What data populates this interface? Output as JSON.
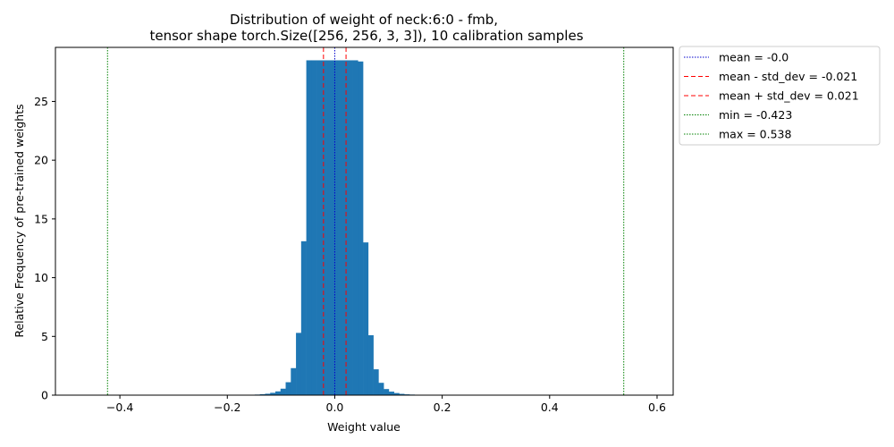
{
  "chart_data": {
    "type": "bar",
    "title": "Distribution of weight of neck:6:0 - fmb,",
    "subtitle": "tensor shape torch.Size([256, 256, 3, 3]), 10 calibration samples",
    "xlabel": "Weight value",
    "ylabel": "Relative Frequency of pre-trained weights",
    "xlim": [
      -0.52,
      0.63
    ],
    "ylim": [
      0,
      29.6
    ],
    "xticks": [
      -0.4,
      -0.2,
      0.0,
      0.2,
      0.4,
      0.6
    ],
    "xtick_labels": [
      "−0.4",
      "−0.2",
      "0.0",
      "0.2",
      "0.4",
      "0.6"
    ],
    "yticks": [
      0,
      5,
      10,
      15,
      20,
      25
    ],
    "ytick_labels": [
      "0",
      "5",
      "10",
      "15",
      "20",
      "25"
    ],
    "bar_color": "#1f77b4",
    "bin_width": 0.0096,
    "bins": [
      {
        "x": -0.1874,
        "y": 0.01
      },
      {
        "x": -0.1778,
        "y": 0.02
      },
      {
        "x": -0.1682,
        "y": 0.02
      },
      {
        "x": -0.1586,
        "y": 0.03
      },
      {
        "x": -0.149,
        "y": 0.05
      },
      {
        "x": -0.1394,
        "y": 0.08
      },
      {
        "x": -0.1298,
        "y": 0.12
      },
      {
        "x": -0.1202,
        "y": 0.2
      },
      {
        "x": -0.1106,
        "y": 0.32
      },
      {
        "x": -0.101,
        "y": 0.55
      },
      {
        "x": -0.0914,
        "y": 1.1
      },
      {
        "x": -0.0818,
        "y": 2.3
      },
      {
        "x": -0.0722,
        "y": 5.3
      },
      {
        "x": -0.0626,
        "y": 13.1
      },
      {
        "x": -0.053,
        "y": 28.5
      },
      {
        "x": -0.0434,
        "y": 28.5
      },
      {
        "x": -0.0338,
        "y": 28.5
      },
      {
        "x": -0.0242,
        "y": 28.5
      },
      {
        "x": -0.0146,
        "y": 28.5
      },
      {
        "x": -0.005,
        "y": 28.5
      },
      {
        "x": 0.0046,
        "y": 28.5
      },
      {
        "x": 0.0142,
        "y": 28.5
      },
      {
        "x": 0.0238,
        "y": 28.5
      },
      {
        "x": 0.0334,
        "y": 28.5
      },
      {
        "x": 0.043,
        "y": 28.4
      },
      {
        "x": 0.0526,
        "y": 13.0
      },
      {
        "x": 0.0622,
        "y": 5.1
      },
      {
        "x": 0.0718,
        "y": 2.2
      },
      {
        "x": 0.0814,
        "y": 1.05
      },
      {
        "x": 0.091,
        "y": 0.52
      },
      {
        "x": 0.1006,
        "y": 0.3
      },
      {
        "x": 0.1102,
        "y": 0.18
      },
      {
        "x": 0.1198,
        "y": 0.11
      },
      {
        "x": 0.1294,
        "y": 0.07
      },
      {
        "x": 0.139,
        "y": 0.05
      },
      {
        "x": 0.1486,
        "y": 0.03
      },
      {
        "x": 0.1582,
        "y": 0.02
      },
      {
        "x": 0.1678,
        "y": 0.01
      }
    ],
    "lines": [
      {
        "label": "mean = -0.0",
        "x": -0.0,
        "color": "#0000cc",
        "style": "dotted"
      },
      {
        "label": "mean - std_dev = -0.021",
        "x": -0.021,
        "color": "#ff0000",
        "style": "dashed"
      },
      {
        "label": "mean + std_dev = 0.021",
        "x": 0.021,
        "color": "#ff0000",
        "style": "dashed"
      },
      {
        "label": "min = -0.423",
        "x": -0.423,
        "color": "#008000",
        "style": "dotted"
      },
      {
        "label": "max = 0.538",
        "x": 0.538,
        "color": "#008000",
        "style": "dotted"
      }
    ],
    "legend_position": "outside-top-right",
    "grid": false
  }
}
